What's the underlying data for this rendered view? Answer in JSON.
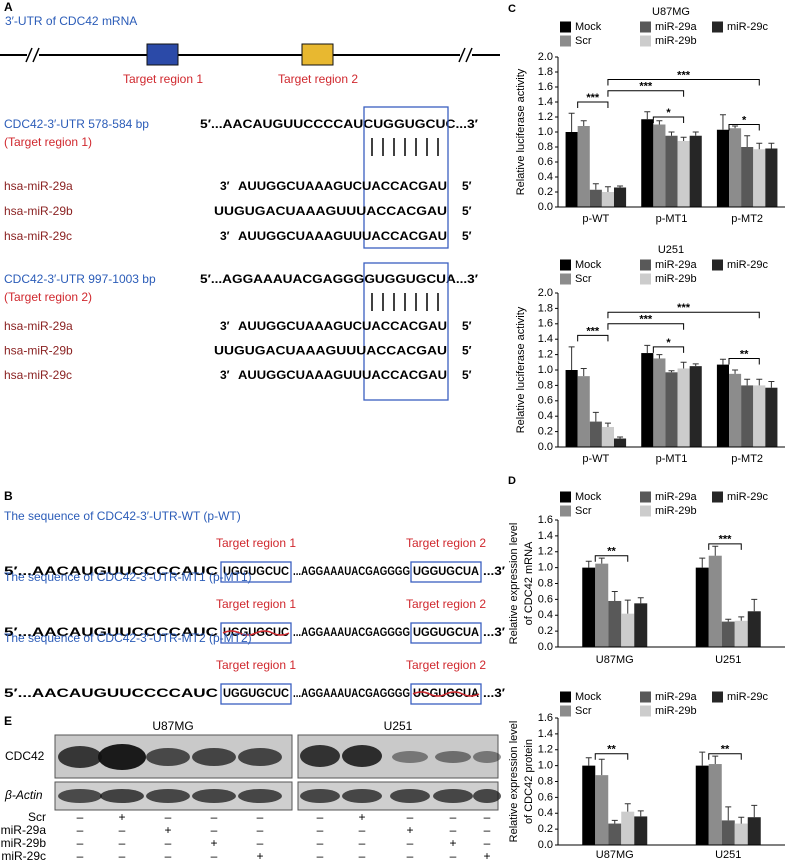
{
  "panel_a": {
    "label": "A",
    "utr_title": "3′-UTR of CDC42 mRNA",
    "target_regions": [
      "Target region 1",
      "Target region 2"
    ],
    "blocks": [
      {
        "name": "CDC42-3′-UTR 578-584 bp",
        "region": "(Target region 1)",
        "sequence": "5′...AACAUGUUCCCCAUCUGGUGCUC...3′",
        "mirnas": [
          {
            "name": "hsa-miR-29a",
            "three": "3′",
            "sequence": "AUUGGCUAAAGUCUACCACGAU",
            "five": "5′"
          },
          {
            "name": "hsa-miR-29b",
            "sequence": "UUGUGACUAAAGUUUACCACGAU",
            "five": "5′"
          },
          {
            "name": "hsa-miR-29c",
            "three": "3′",
            "sequence": "AUUGGCUAAAGUUUACCACGAU",
            "five": "5′"
          }
        ]
      },
      {
        "name": "CDC42-3′-UTR 997-1003 bp",
        "region": "(Target region 2)",
        "sequence": "5′...AGGAAAUACGAGGGGUGGUGCUA...3′",
        "mirnas": [
          {
            "name": "hsa-miR-29a",
            "three": "3′",
            "sequence": "AUUGGCUAAAGUCUACCACGAU",
            "five": "5′"
          },
          {
            "name": "hsa-miR-29b",
            "sequence": "UUGUGACUAAAGUUUACCACGAU",
            "five": "5′"
          },
          {
            "name": "hsa-miR-29c",
            "three": "3′",
            "sequence": "AUUGGCUAAAGUUUACCACGAU",
            "five": "5′"
          }
        ]
      }
    ]
  },
  "panel_b": {
    "label": "B",
    "rows": [
      {
        "title": "The sequence of CDC42-3′-UTR-WT (p-WT)",
        "parts": [
          "5′...AACAUGUUCCCCAUC",
          "UGGUGCUC",
          "...AGGAAAUACGAGGGG",
          "UGGUGCUA",
          "...3′"
        ],
        "mutated": [
          false,
          false
        ]
      },
      {
        "title": "The sequence of CDC42-3′-UTR-MT1 (p-MT1)",
        "parts": [
          "5′...AACAUGUUCCCCAUC",
          "UGGUGCUC",
          "...AGGAAAUACGAGGGG",
          "UGGUGCUA",
          "...3′"
        ],
        "mutated": [
          true,
          false
        ]
      },
      {
        "title": "The sequence of CDC42-3′-UTR-MT2 (p-MT2)",
        "parts": [
          "5′...AACAUGUUCCCCAUC",
          "UGGUGCUC",
          "...AGGAAAUACGAGGGG",
          "UGGUGCUA",
          "...3′"
        ],
        "mutated": [
          false,
          true
        ]
      }
    ]
  },
  "panel_e": {
    "label": "E",
    "cell_lines": [
      "U87MG",
      "U251"
    ],
    "proteins": [
      "CDC42",
      "β-Actin"
    ],
    "treatments": [
      {
        "name": "Scr",
        "signs": [
          "–",
          "+",
          "–",
          "–",
          "–",
          "–",
          "+",
          "–",
          "–",
          "–"
        ]
      },
      {
        "name": "miR-29a",
        "signs": [
          "–",
          "–",
          "+",
          "–",
          "–",
          "–",
          "–",
          "+",
          "–",
          "–"
        ]
      },
      {
        "name": "miR-29b",
        "signs": [
          "–",
          "–",
          "–",
          "+",
          "–",
          "–",
          "–",
          "–",
          "+",
          "–"
        ]
      },
      {
        "name": "miR-29c",
        "signs": [
          "–",
          "–",
          "–",
          "–",
          "+",
          "–",
          "–",
          "–",
          "–",
          "+"
        ]
      }
    ]
  },
  "chart_data": [
    {
      "type": "bar",
      "panel_label": "C",
      "title": "U87MG",
      "ylabel": [
        "Relative luciferase activity"
      ],
      "categories": [
        "p-WT",
        "p-MT1",
        "p-MT2"
      ],
      "series": [
        {
          "name": "Mock",
          "color": "#000000",
          "values": [
            1.0,
            1.17,
            1.03
          ],
          "errors": [
            0.25,
            0.1,
            0.2
          ]
        },
        {
          "name": "Scr",
          "color": "#8c8c8c",
          "values": [
            1.08,
            1.1,
            1.05
          ],
          "errors": [
            0.07,
            0.05,
            0.03
          ]
        },
        {
          "name": "miR-29a",
          "color": "#595959",
          "values": [
            0.23,
            0.95,
            0.8
          ],
          "errors": [
            0.08,
            0.05,
            0.15
          ]
        },
        {
          "name": "miR-29b",
          "color": "#cccccc",
          "values": [
            0.2,
            0.88,
            0.77
          ],
          "errors": [
            0.07,
            0.05,
            0.08
          ]
        },
        {
          "name": "miR-29c",
          "color": "#262626",
          "values": [
            0.26,
            0.95,
            0.78
          ],
          "errors": [
            0.02,
            0.05,
            0.07
          ]
        }
      ],
      "ylim": [
        0,
        2.0
      ],
      "yticks": [
        {
          "value": 0,
          "label": "0.0"
        },
        0.2,
        0.4,
        0.6,
        0.8,
        {
          "value": 1,
          "label": "1.0"
        },
        1.2,
        1.4,
        1.6,
        1.8,
        {
          "value": 2,
          "label": "2.0"
        }
      ],
      "legend": "top",
      "annotations": [
        "***",
        "*",
        "*",
        "***",
        "***"
      ]
    },
    {
      "type": "bar",
      "title": "U251",
      "ylabel": [
        "Relative luciferase activity"
      ],
      "categories": [
        "p-WT",
        "p-MT1",
        "p-MT2"
      ],
      "series": [
        {
          "name": "Mock",
          "color": "#000000",
          "values": [
            1.0,
            1.22,
            1.07
          ],
          "errors": [
            0.3,
            0.1,
            0.07
          ]
        },
        {
          "name": "Scr",
          "color": "#8c8c8c",
          "values": [
            0.92,
            1.15,
            0.95
          ],
          "errors": [
            0.1,
            0.05,
            0.05
          ]
        },
        {
          "name": "miR-29a",
          "color": "#595959",
          "values": [
            0.33,
            0.97,
            0.8
          ],
          "errors": [
            0.12,
            0.02,
            0.08
          ]
        },
        {
          "name": "miR-29b",
          "color": "#cccccc",
          "values": [
            0.26,
            1.02,
            0.8
          ],
          "errors": [
            0.05,
            0.08,
            0.08
          ]
        },
        {
          "name": "miR-29c",
          "color": "#262626",
          "values": [
            0.11,
            1.05,
            0.77
          ],
          "errors": [
            0.02,
            0.03,
            0.08
          ]
        }
      ],
      "ylim": [
        0,
        2.0
      ],
      "yticks": [
        {
          "value": 0,
          "label": "0.0"
        },
        0.2,
        0.4,
        0.6,
        0.8,
        {
          "value": 1,
          "label": "1.0"
        },
        1.2,
        1.4,
        1.6,
        1.8,
        {
          "value": 2,
          "label": "2.0"
        }
      ],
      "legend": "top",
      "annotations": [
        "***",
        "*",
        "**",
        "***",
        "***"
      ]
    },
    {
      "type": "bar",
      "panel_label": "D",
      "ylabel": [
        "Relative expression level",
        "of CDC42 mRNA"
      ],
      "categories": [
        "U87MG",
        "U251"
      ],
      "series": [
        {
          "name": "Mock",
          "color": "#000000",
          "values": [
            1.0,
            1.0
          ],
          "errors": [
            0.08,
            0.12
          ]
        },
        {
          "name": "Scr",
          "color": "#8c8c8c",
          "values": [
            1.05,
            1.15
          ],
          "errors": [
            0.07,
            0.12
          ]
        },
        {
          "name": "miR-29a",
          "color": "#595959",
          "values": [
            0.58,
            0.32
          ],
          "errors": [
            0.12,
            0.03
          ]
        },
        {
          "name": "miR-29b",
          "color": "#cccccc",
          "values": [
            0.42,
            0.33
          ],
          "errors": [
            0.17,
            0.05
          ]
        },
        {
          "name": "miR-29c",
          "color": "#262626",
          "values": [
            0.55,
            0.45
          ],
          "errors": [
            0.07,
            0.15
          ]
        }
      ],
      "ylim": [
        0,
        1.6
      ],
      "yticks": [
        {
          "value": 0,
          "label": "0.0"
        },
        0.2,
        0.4,
        0.6,
        0.8,
        {
          "value": 1,
          "label": "1.0"
        },
        1.2,
        1.4,
        1.6
      ],
      "legend": "top",
      "annotations": [
        "**",
        "***"
      ]
    },
    {
      "type": "bar",
      "ylabel": [
        "Relative expression level",
        "of CDC42 protein"
      ],
      "categories": [
        "U87MG",
        "U251"
      ],
      "series": [
        {
          "name": "Mock",
          "color": "#000000",
          "values": [
            1.0,
            1.0
          ],
          "errors": [
            0.1,
            0.17
          ]
        },
        {
          "name": "Scr",
          "color": "#8c8c8c",
          "values": [
            0.88,
            1.02
          ],
          "errors": [
            0.2,
            0.1
          ]
        },
        {
          "name": "miR-29a",
          "color": "#595959",
          "values": [
            0.27,
            0.31
          ],
          "errors": [
            0.04,
            0.17
          ]
        },
        {
          "name": "miR-29b",
          "color": "#cccccc",
          "values": [
            0.42,
            0.27
          ],
          "errors": [
            0.1,
            0.08
          ]
        },
        {
          "name": "miR-29c",
          "color": "#262626",
          "values": [
            0.36,
            0.35
          ],
          "errors": [
            0.07,
            0.15
          ]
        }
      ],
      "ylim": [
        0,
        1.6
      ],
      "yticks": [
        {
          "value": 0,
          "label": "0.0"
        },
        0.2,
        0.4,
        0.6,
        0.8,
        {
          "value": 1,
          "label": "1.0"
        },
        1.2,
        1.4,
        1.6
      ],
      "legend": "top",
      "annotations": [
        "**",
        "**"
      ]
    }
  ]
}
